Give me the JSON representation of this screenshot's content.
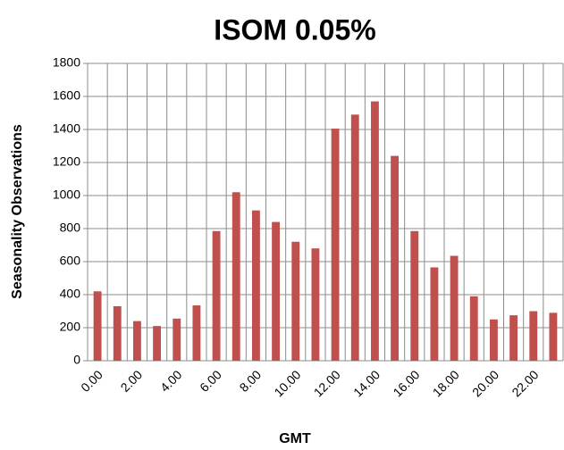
{
  "chart_data": {
    "type": "bar",
    "title": "ISOM 0.05%",
    "x_label": "GMT",
    "y_label": "Seasonality Observations",
    "categories": [
      "0.00",
      null,
      "2.00",
      null,
      "4.00",
      null,
      "6.00",
      null,
      "8.00",
      null,
      "10.00",
      null,
      "12.00",
      null,
      "14.00",
      null,
      "16.00",
      null,
      "18.00",
      null,
      "20.00",
      null,
      "22.00",
      null
    ],
    "values": [
      420,
      330,
      240,
      210,
      255,
      335,
      785,
      1020,
      910,
      840,
      720,
      680,
      1405,
      1490,
      1570,
      1240,
      785,
      565,
      635,
      390,
      250,
      275,
      300,
      290
    ],
    "color": "#c0504d",
    "ylim": [
      0,
      1800
    ],
    "yticks": [
      0,
      200,
      400,
      600,
      800,
      1000,
      1200,
      1400,
      1600,
      1800
    ],
    "grid": true
  }
}
